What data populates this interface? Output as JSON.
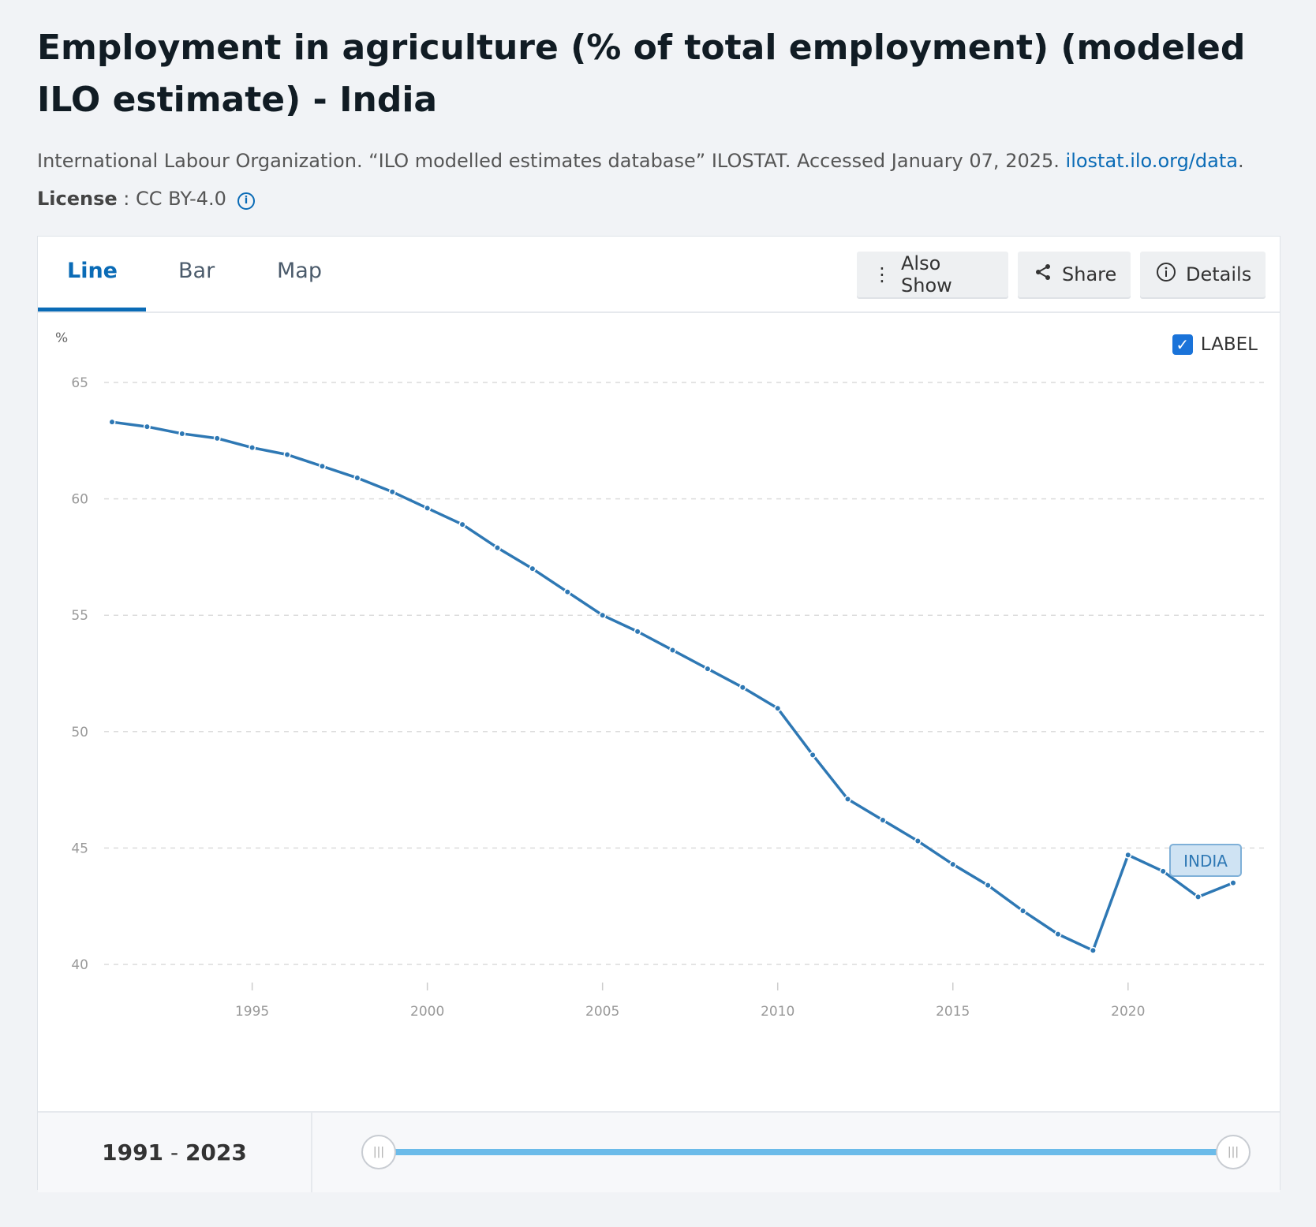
{
  "title": "Employment in agriculture (% of total employment) (modeled ILO estimate) - India",
  "source": {
    "text": "International Labour Organization. “ILO modelled estimates database” ILOSTAT. Accessed January 07, 2025. ",
    "link": "ilostat.ilo.org/data",
    "after": "."
  },
  "license": {
    "label": "License",
    "sep": " : ",
    "value": "CC BY-4.0",
    "icon": "info-icon"
  },
  "tabs": [
    {
      "label": "Line",
      "active": true
    },
    {
      "label": "Bar"
    },
    {
      "label": "Map"
    }
  ],
  "toolbar": {
    "also_show": "Also Show",
    "share": "Share",
    "details": "Details"
  },
  "label_toggle": {
    "label": "LABEL",
    "checked": true
  },
  "series_label": "INDIA",
  "footer": {
    "range_start": "1991",
    "range_sep": " - ",
    "range_end": "2023",
    "slider_range": [
      1991,
      2023
    ]
  },
  "colors": {
    "accent": "#0a6bb6",
    "line": "#2e78b4",
    "slider": "#6bbbe9"
  },
  "chart_data": {
    "type": "line",
    "title": "Employment in agriculture (% of total employment) (modeled ILO estimate) - India",
    "ylabel": "%",
    "xlabel": "",
    "ylim": [
      40,
      65
    ],
    "yticks": [
      65,
      60,
      55,
      50,
      45,
      40
    ],
    "xticks": [
      1995,
      2000,
      2005,
      2010,
      2015,
      2020
    ],
    "xlim": [
      1991,
      2023
    ],
    "grid": true,
    "series": [
      {
        "name": "INDIA",
        "x": [
          1991,
          1992,
          1993,
          1994,
          1995,
          1996,
          1997,
          1998,
          1999,
          2000,
          2001,
          2002,
          2003,
          2004,
          2005,
          2006,
          2007,
          2008,
          2009,
          2010,
          2011,
          2012,
          2013,
          2014,
          2015,
          2016,
          2017,
          2018,
          2019,
          2020,
          2021,
          2022,
          2023
        ],
        "values": [
          63.3,
          63.1,
          62.8,
          62.6,
          62.2,
          61.9,
          61.4,
          60.9,
          60.3,
          59.6,
          58.9,
          57.9,
          57.0,
          56.0,
          55.0,
          54.3,
          53.5,
          52.7,
          51.9,
          51.0,
          49.0,
          47.1,
          46.2,
          45.3,
          44.3,
          43.4,
          42.3,
          41.3,
          40.6,
          44.7,
          44.0,
          42.9,
          43.5
        ]
      }
    ]
  }
}
